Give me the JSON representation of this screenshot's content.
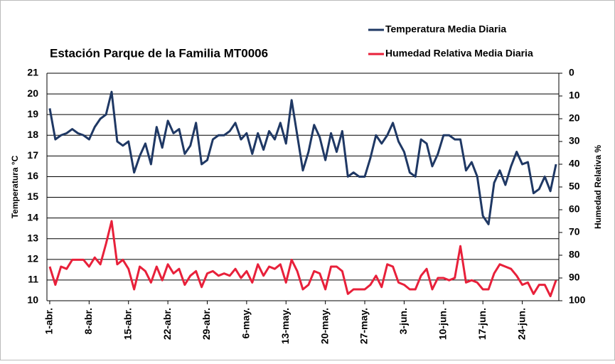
{
  "chart_data": {
    "type": "line",
    "title": "Estación  Parque de la Familia  MT0006",
    "ylabel": "Temperatura °C",
    "y2label": "Humedad Relativa %",
    "categories": [
      "1-abr.",
      null,
      null,
      null,
      null,
      null,
      null,
      "8-abr.",
      null,
      null,
      null,
      null,
      null,
      null,
      "15-abr.",
      null,
      null,
      null,
      null,
      null,
      null,
      "22-abr.",
      null,
      null,
      null,
      null,
      null,
      null,
      "29-abr.",
      null,
      null,
      null,
      null,
      null,
      null,
      "6-may.",
      null,
      null,
      null,
      null,
      null,
      null,
      "13-may.",
      null,
      null,
      null,
      null,
      null,
      null,
      "20-may.",
      null,
      null,
      null,
      null,
      null,
      null,
      "27-may.",
      null,
      null,
      null,
      null,
      null,
      null,
      "3-jun.",
      null,
      null,
      null,
      null,
      null,
      null,
      "10-jun.",
      null,
      null,
      null,
      null,
      null,
      null,
      "17-jun.",
      null,
      null,
      null,
      null,
      null,
      null,
      "24-jun.",
      null,
      null,
      null,
      null,
      null,
      null
    ],
    "series": [
      {
        "name": "Temperatura Media Diaria",
        "color": "#1f3864",
        "values": [
          19.3,
          17.8,
          18.0,
          18.1,
          18.3,
          18.1,
          18.0,
          17.8,
          18.4,
          18.8,
          19.0,
          20.1,
          17.7,
          17.5,
          17.7,
          16.2,
          17.0,
          17.6,
          16.6,
          18.4,
          17.4,
          18.7,
          18.1,
          18.3,
          17.1,
          17.5,
          18.6,
          16.6,
          16.8,
          17.8,
          18.0,
          18.0,
          18.2,
          18.6,
          17.8,
          18.1,
          17.1,
          18.1,
          17.3,
          18.2,
          17.8,
          18.6,
          17.6,
          19.7,
          18.0,
          16.3,
          17.2,
          18.5,
          17.9,
          16.8,
          18.1,
          17.2,
          18.2,
          16.0,
          16.2,
          16.0,
          16.0,
          16.9,
          18.0,
          17.6,
          18.0,
          18.6,
          17.7,
          17.2,
          16.2,
          16.0,
          17.8,
          17.6,
          16.5,
          17.1,
          18.0,
          18.0,
          17.8,
          17.8,
          16.3,
          16.7,
          16.0,
          14.1,
          13.7,
          15.7,
          16.3,
          15.6,
          16.5,
          17.2,
          16.6,
          16.7,
          15.2,
          15.4,
          16.0,
          15.3,
          16.6
        ]
      },
      {
        "name": "Humedad Relativa Media Diaria",
        "color": "#e8203a",
        "axis": "y2",
        "values": [
          85,
          93,
          85,
          86,
          82,
          82,
          82,
          85,
          81,
          84,
          75,
          65,
          84,
          82,
          86,
          95,
          85,
          87,
          92,
          85,
          91,
          84,
          88,
          86,
          93,
          89,
          87,
          94,
          88,
          87,
          89,
          88,
          89,
          86,
          90,
          87,
          92,
          84,
          89,
          85,
          86,
          84,
          92,
          82,
          87,
          95,
          93,
          87,
          88,
          95,
          85,
          85,
          87,
          97,
          95,
          95,
          95,
          93,
          89,
          94,
          84,
          85,
          92,
          93,
          95,
          95,
          89,
          86,
          95,
          90,
          90,
          91,
          90,
          76,
          92,
          91,
          92,
          95,
          95,
          88,
          84,
          85,
          86,
          89,
          93,
          92,
          97,
          93,
          93,
          98,
          91
        ]
      }
    ],
    "ylim": [
      10,
      21
    ],
    "yticks": [
      10,
      11,
      12,
      13,
      14,
      15,
      16,
      17,
      18,
      19,
      20,
      21
    ],
    "y2lim": [
      100,
      0
    ],
    "y2ticks": [
      0,
      10,
      20,
      30,
      40,
      50,
      60,
      70,
      80,
      90,
      100
    ],
    "grid": true,
    "legend": "top-right"
  }
}
